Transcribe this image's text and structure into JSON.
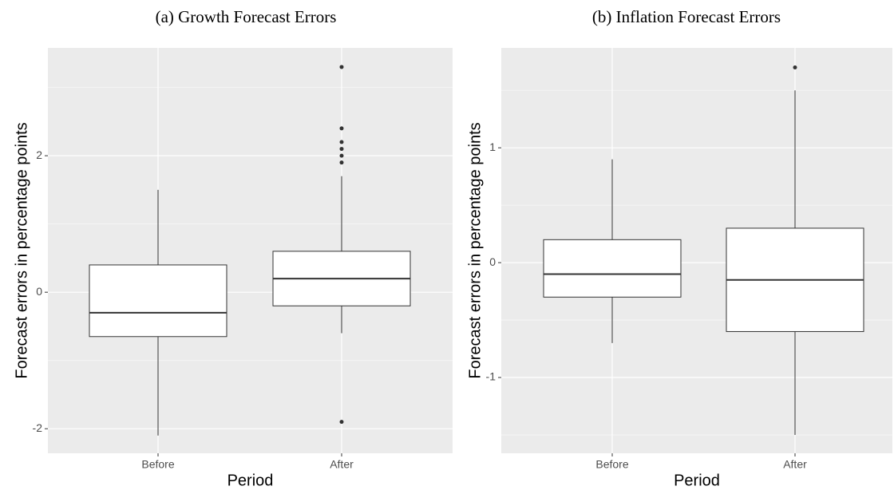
{
  "chart_data": [
    {
      "type": "box",
      "title": "(a) Growth Forecast Errors",
      "x_label": "Period",
      "y_label": "Forecast errors in percentage points",
      "categories": [
        "Before",
        "After"
      ],
      "boxes": [
        {
          "whisker_low": -2.1,
          "q1": -0.65,
          "median": -0.3,
          "q3": 0.4,
          "whisker_high": 1.5,
          "outliers": []
        },
        {
          "whisker_low": -0.6,
          "q1": -0.2,
          "median": 0.2,
          "q3": 0.6,
          "whisker_high": 1.7,
          "outliers": [
            3.3,
            2.4,
            2.2,
            2.1,
            2.0,
            1.9,
            -1.9
          ]
        }
      ],
      "ylim": [
        -2.36,
        3.58
      ],
      "yticks": [
        -2,
        0,
        2
      ],
      "grid": true
    },
    {
      "type": "box",
      "title": "(b) Inflation Forecast Errors",
      "x_label": "Period",
      "y_label": "Forecast errors in percentage points",
      "categories": [
        "Before",
        "After"
      ],
      "boxes": [
        {
          "whisker_low": -0.7,
          "q1": -0.3,
          "median": -0.1,
          "q3": 0.2,
          "whisker_high": 0.9,
          "outliers": []
        },
        {
          "whisker_low": -1.5,
          "q1": -0.6,
          "median": -0.15,
          "q3": 0.3,
          "whisker_high": 1.5,
          "outliers": [
            1.7
          ]
        }
      ],
      "ylim": [
        -1.66,
        1.87
      ],
      "yticks": [
        -1,
        0,
        1
      ],
      "grid": true
    }
  ]
}
